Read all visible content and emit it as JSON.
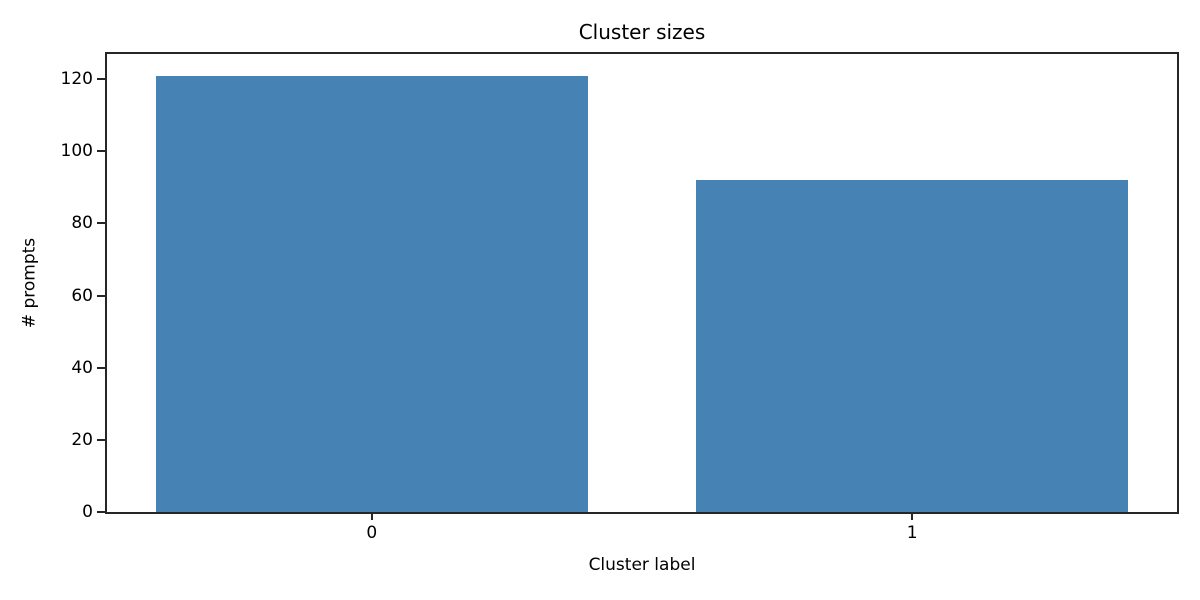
{
  "figure": {
    "background": "#ffffff"
  },
  "chart_data": {
    "type": "bar",
    "title": "Cluster sizes",
    "xlabel": "Cluster label",
    "ylabel": "# prompts",
    "categories": [
      "0",
      "1"
    ],
    "values": [
      121,
      92
    ],
    "yticks": [
      0,
      20,
      40,
      60,
      80,
      100,
      120
    ],
    "ylim": [
      0,
      127
    ],
    "xlim": [
      -0.49,
      1.49
    ],
    "bar_width": 0.8,
    "bar_color": "#4682B4",
    "axis_color": "#262626",
    "text_color": "#000000",
    "grid": false,
    "legend_position": "none"
  }
}
